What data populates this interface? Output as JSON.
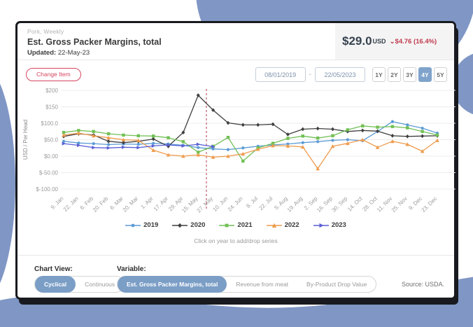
{
  "page": {
    "blob_color": "#8097c5"
  },
  "header": {
    "category": "Pork, Weekly",
    "title": "Est. Gross Packer Margins, total",
    "updated_label": "Updated:",
    "updated_value": "22-May-23",
    "price": {
      "value": "$29.0",
      "currency": "USD",
      "down_icon": "⌄",
      "change": "$4.76 (16.4%)",
      "change_color": "#c13b4e"
    }
  },
  "toolbar": {
    "change_item_label": "Change Item",
    "date_from": "08/01/2019",
    "date_separator": "-",
    "date_to": "22/05/2023",
    "range_buttons": [
      {
        "label": "1Y",
        "selected": false
      },
      {
        "label": "2Y",
        "selected": false
      },
      {
        "label": "3Y",
        "selected": false
      },
      {
        "label": "4Y",
        "selected": true
      },
      {
        "label": "5Y",
        "selected": false
      }
    ]
  },
  "chart_data": {
    "type": "line",
    "ylabel": "USD / Per Head",
    "ylim": [
      -100,
      200
    ],
    "grid": true,
    "y_ticks": [
      {
        "label": "$200",
        "value": 200
      },
      {
        "label": "$150",
        "value": 150
      },
      {
        "label": "$100.0",
        "value": 100
      },
      {
        "label": "$50.0",
        "value": 50
      },
      {
        "label": "$0.00",
        "value": 0
      },
      {
        "label": "$-50.00",
        "value": -50
      },
      {
        "label": "$-100.00",
        "value": -100
      }
    ],
    "categories": [
      "9. Jan",
      "22. Jan",
      "6. Feb",
      "20. Feb",
      "6. Mar",
      "20. Mar",
      "1. Apr",
      "17. Apr",
      "29. Apr",
      "15. May",
      "27. May",
      "10. Jun",
      "24. Jun",
      "8. Jul",
      "22. Jul",
      "5. Aug",
      "19. Aug",
      "2. Sep",
      "16. Sep",
      "30. Sep",
      "14. Oct",
      "28. Oct",
      "11. Nov",
      "25. Nov",
      "9. Dec",
      "23. Dec"
    ],
    "series": [
      {
        "name": "2019",
        "color": "#5b9bd5",
        "marker": "circle",
        "values": [
          45,
          40,
          38,
          35,
          37,
          36,
          39,
          37,
          33,
          26,
          22,
          20,
          25,
          30,
          34,
          37,
          41,
          44,
          48,
          50,
          47,
          75,
          105,
          95,
          85,
          70
        ]
      },
      {
        "name": "2020",
        "color": "#3f3f3f",
        "marker": "diamond",
        "values": [
          60,
          68,
          64,
          45,
          41,
          45,
          52,
          30,
          72,
          185,
          140,
          101,
          95,
          95,
          97,
          66,
          82,
          84,
          82,
          75,
          78,
          76,
          62,
          60,
          61,
          62
        ]
      },
      {
        "name": "2021",
        "color": "#71c055",
        "marker": "square",
        "values": [
          72,
          78,
          75,
          68,
          64,
          62,
          61,
          56,
          44,
          12,
          30,
          57,
          -15,
          25,
          39,
          54,
          61,
          55,
          62,
          80,
          92,
          88,
          90,
          86,
          75,
          64
        ]
      },
      {
        "name": "2022",
        "color": "#ef9b4d",
        "marker": "triangle",
        "values": [
          64,
          70,
          62,
          56,
          50,
          48,
          18,
          4,
          0,
          4,
          -3,
          0,
          7,
          21,
          32,
          31,
          28,
          -38,
          30,
          39,
          50,
          27,
          45,
          36,
          15,
          48
        ]
      },
      {
        "name": "2023",
        "color": "#5a5fd6",
        "marker": "triangle-right",
        "values": [
          38,
          33,
          26,
          25,
          27,
          26,
          31,
          34,
          31,
          36,
          29,
          null,
          null,
          null,
          null,
          null,
          null,
          null,
          null,
          null,
          null,
          null,
          null,
          null,
          null,
          null
        ]
      }
    ],
    "current_week_line": {
      "x_index": 9.55,
      "color": "#b03a48",
      "style": "dashed"
    },
    "legend_hint": "Click on year to add/drop series",
    "legend_position": "bottom"
  },
  "footer": {
    "chart_view_label": "Chart View:",
    "chart_view_options": [
      {
        "label": "Cyclical",
        "selected": true
      },
      {
        "label": "Continuous",
        "selected": false
      }
    ],
    "variable_label": "Variable:",
    "variable_options": [
      {
        "label": "Est. Gross Packer Margins, total",
        "selected": true
      },
      {
        "label": "Revenue from meat",
        "selected": false
      },
      {
        "label": "By-Product Drop Value",
        "selected": false
      }
    ],
    "source": "Source: USDA."
  }
}
